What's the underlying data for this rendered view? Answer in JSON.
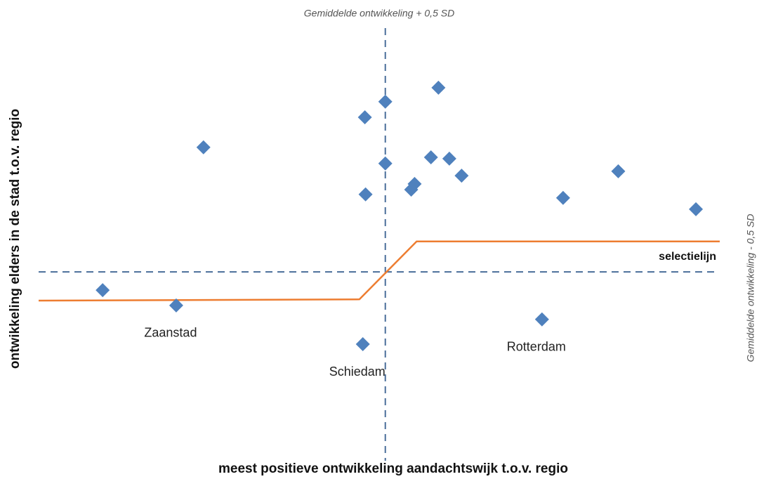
{
  "chart_data": {
    "type": "scatter",
    "x_label": "meest positieve ontwikkeling aandachtswijk t.o.v. regio",
    "y_label": "ontwikkeling elders in de stad t.o.v. regio",
    "xlim": [
      0,
      100
    ],
    "ylim": [
      0,
      100
    ],
    "color": "#4f81bd",
    "x": [
      24.2,
      47.9,
      50.9,
      58.7,
      50.9,
      57.6,
      60.3,
      62.1,
      55.2,
      54.7,
      48.0,
      77.0,
      85.1,
      96.5,
      9.4,
      20.2,
      73.9,
      47.6
    ],
    "values": [
      71.0,
      77.9,
      81.5,
      84.7,
      67.3,
      68.7,
      68.4,
      64.5,
      62.6,
      61.3,
      60.2,
      59.4,
      65.5,
      56.8,
      38.2,
      34.7,
      31.5,
      25.8
    ],
    "point_labels": [
      null,
      null,
      null,
      null,
      null,
      null,
      null,
      null,
      null,
      null,
      null,
      null,
      null,
      null,
      null,
      "Zaanstad",
      "Rotterdam",
      "Schiedam"
    ],
    "reference_lines": {
      "x": 50.9,
      "x_label": "Gemiddelde  ontwikkeling + 0,5 SD",
      "y": 42.4,
      "y_label": "Gemiddelde  ontwikkeling - 0,5 SD",
      "color": "#4a6e9a"
    },
    "lines": [
      {
        "name": "selectielijn",
        "color": "#ed7d31",
        "x": [
          0,
          47.1,
          55.5,
          100
        ],
        "y": [
          35.8,
          36.1,
          49.4,
          49.4
        ]
      }
    ]
  }
}
